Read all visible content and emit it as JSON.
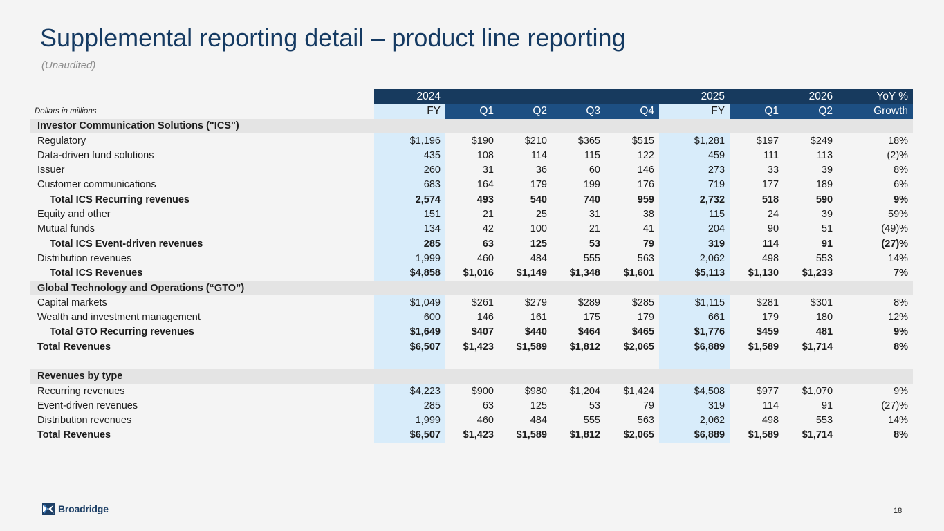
{
  "title": "Supplemental reporting detail – product line reporting",
  "subtitle": "(Unaudited)",
  "header": {
    "year_2024": "2024",
    "year_2025": "2025",
    "year_2026": "2026",
    "yoy": "YoY %",
    "units_label": "Dollars in millions",
    "cols": [
      "FY",
      "Q1",
      "Q2",
      "Q3",
      "Q4",
      "FY",
      "Q1",
      "Q2",
      "Growth"
    ]
  },
  "rows": [
    {
      "label": "Investor Communication Solutions (\"ICS\")",
      "type": "section",
      "values": []
    },
    {
      "label": "Regulatory",
      "type": "normal",
      "values": [
        "$1,196",
        "$190",
        "$210",
        "$365",
        "$515",
        "$1,281",
        "$197",
        "$249",
        "18%"
      ]
    },
    {
      "label": "Data-driven fund solutions",
      "type": "normal",
      "values": [
        "435",
        "108",
        "114",
        "115",
        "122",
        "459",
        "111",
        "113",
        "(2)%"
      ]
    },
    {
      "label": "Issuer",
      "type": "normal",
      "values": [
        "260",
        "31",
        "36",
        "60",
        "146",
        "273",
        "33",
        "39",
        "8%"
      ]
    },
    {
      "label": "Customer communications",
      "type": "normal",
      "values": [
        "683",
        "164",
        "179",
        "199",
        "176",
        "719",
        "177",
        "189",
        "6%"
      ]
    },
    {
      "label": "Total ICS Recurring revenues",
      "type": "subtotal",
      "values": [
        "2,574",
        "493",
        "540",
        "740",
        "959",
        "2,732",
        "518",
        "590",
        "9%"
      ]
    },
    {
      "label": "Equity and other",
      "type": "normal",
      "values": [
        "151",
        "21",
        "25",
        "31",
        "38",
        "115",
        "24",
        "39",
        "59%"
      ]
    },
    {
      "label": "Mutual funds",
      "type": "normal",
      "values": [
        "134",
        "42",
        "100",
        "21",
        "41",
        "204",
        "90",
        "51",
        "(49)%"
      ]
    },
    {
      "label": "Total ICS Event-driven revenues",
      "type": "subtotal",
      "values": [
        "285",
        "63",
        "125",
        "53",
        "79",
        "319",
        "114",
        "91",
        "(27)%"
      ]
    },
    {
      "label": "Distribution revenues",
      "type": "normal",
      "values": [
        "1,999",
        "460",
        "484",
        "555",
        "563",
        "2,062",
        "498",
        "553",
        "14%"
      ]
    },
    {
      "label": "Total ICS Revenues",
      "type": "subtotal",
      "values": [
        "$4,858",
        "$1,016",
        "$1,149",
        "$1,348",
        "$1,601",
        "$5,113",
        "$1,130",
        "$1,233",
        "7%"
      ]
    },
    {
      "label": "Global Technology and Operations (“GTO”)",
      "type": "section",
      "values": []
    },
    {
      "label": "Capital markets",
      "type": "normal",
      "values": [
        "$1,049",
        "$261",
        "$279",
        "$289",
        "$285",
        "$1,115",
        "$281",
        "$301",
        "8%"
      ]
    },
    {
      "label": "Wealth and investment management",
      "type": "normal",
      "values": [
        "600",
        "146",
        "161",
        "175",
        "179",
        "661",
        "179",
        "180",
        "12%"
      ]
    },
    {
      "label": "Total GTO Recurring revenues",
      "type": "subtotal",
      "values": [
        "$1,649",
        "$407",
        "$440",
        "$464",
        "$465",
        "$1,776",
        "$459",
        "481",
        "9%"
      ]
    },
    {
      "label": "Total Revenues",
      "type": "total",
      "values": [
        "$6,507",
        "$1,423",
        "$1,589",
        "$1,812",
        "$2,065",
        "$6,889",
        "$1,589",
        "$1,714",
        "8%"
      ]
    },
    {
      "label": "",
      "type": "blank",
      "values": []
    },
    {
      "label": "Revenues by type",
      "type": "section",
      "values": []
    },
    {
      "label": "Recurring revenues",
      "type": "normal",
      "values": [
        "$4,223",
        "$900",
        "$980",
        "$1,204",
        "$1,424",
        "$4,508",
        "$977",
        "$1,070",
        "9%"
      ]
    },
    {
      "label": "Event-driven revenues",
      "type": "normal",
      "values": [
        "285",
        "63",
        "125",
        "53",
        "79",
        "319",
        "114",
        "91",
        "(27)%"
      ]
    },
    {
      "label": "Distribution revenues",
      "type": "normal",
      "values": [
        "1,999",
        "460",
        "484",
        "555",
        "563",
        "2,062",
        "498",
        "553",
        "14%"
      ]
    },
    {
      "label": "Total Revenues",
      "type": "total",
      "values": [
        "$6,507",
        "$1,423",
        "$1,589",
        "$1,812",
        "$2,065",
        "$6,889",
        "$1,589",
        "$1,714",
        "8%"
      ]
    }
  ],
  "footer": {
    "logo_text": "Broadridge",
    "page_number": "18"
  },
  "colors": {
    "title": "#153a62",
    "header_dark": "#173a5e",
    "header_blue": "#1d4f82",
    "fy_highlight": "#d8ecfa",
    "section_bg": "#e4e4e4"
  },
  "icons": {
    "logo": "broadridge-logo-icon"
  }
}
